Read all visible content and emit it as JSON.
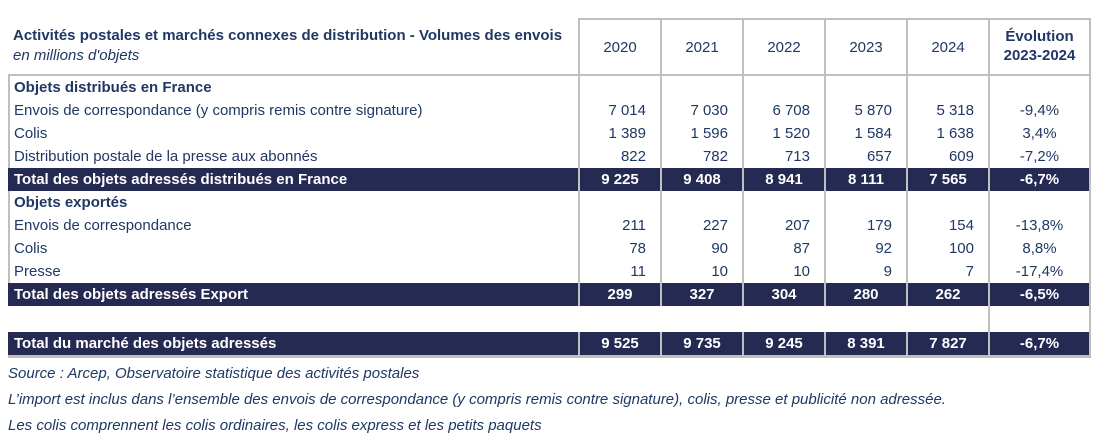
{
  "table": {
    "title": "Activités postales et marchés connexes de distribution  - Volumes des envois",
    "subtitle": "en millions d'objets",
    "year_columns": [
      "2020",
      "2021",
      "2022",
      "2023",
      "2024"
    ],
    "evolution_header_line1": "Évolution",
    "evolution_header_line2": "2023-2024",
    "rows": [
      {
        "type": "section",
        "label": "Objets distribués en France",
        "values": [
          "",
          "",
          "",
          "",
          ""
        ],
        "evolution": ""
      },
      {
        "type": "data",
        "label": "Envois de correspondance (y compris remis contre signature)",
        "values": [
          "7 014",
          "7 030",
          "6 708",
          "5 870",
          "5 318"
        ],
        "evolution": "-9,4%"
      },
      {
        "type": "data",
        "label": "Colis",
        "values": [
          "1 389",
          "1 596",
          "1 520",
          "1 584",
          "1 638"
        ],
        "evolution": "3,4%"
      },
      {
        "type": "data",
        "label": "Distribution postale de la presse aux abonnés",
        "values": [
          "822",
          "782",
          "713",
          "657",
          "609"
        ],
        "evolution": "-7,2%"
      },
      {
        "type": "total",
        "label": "Total des objets adressés distribués en France",
        "values": [
          "9 225",
          "9 408",
          "8 941",
          "8 111",
          "7 565"
        ],
        "evolution": "-6,7%"
      },
      {
        "type": "section",
        "label": "Objets exportés",
        "values": [
          "",
          "",
          "",
          "",
          ""
        ],
        "evolution": ""
      },
      {
        "type": "data",
        "label": "Envois de correspondance",
        "values": [
          "211",
          "227",
          "207",
          "179",
          "154"
        ],
        "evolution": "-13,8%"
      },
      {
        "type": "data",
        "label": "Colis",
        "values": [
          "78",
          "90",
          "87",
          "92",
          "100"
        ],
        "evolution": "8,8%"
      },
      {
        "type": "data",
        "label": "Presse",
        "values": [
          "11",
          "10",
          "10",
          "9",
          "7"
        ],
        "evolution": "-17,4%"
      },
      {
        "type": "total",
        "label": "Total des objets adressés Export",
        "values": [
          "299",
          "327",
          "304",
          "280",
          "262"
        ],
        "evolution": "-6,5%"
      },
      {
        "type": "spacer",
        "label": "",
        "values": [
          "",
          "",
          "",
          "",
          ""
        ],
        "evolution": ""
      },
      {
        "type": "grand-total",
        "label": "Total du marché des objets adressés",
        "values": [
          "9 525",
          "9 735",
          "9 245",
          "8 391",
          "7 827"
        ],
        "evolution": "-6,7%"
      }
    ]
  },
  "footnotes": [
    "Source : Arcep, Observatoire statistique des activités postales",
    "L’import est inclus dans l’ensemble des envois de correspondance (y compris remis contre signature), colis, presse et publicité non adressée.",
    "Les colis comprennent les colis ordinaires, les colis express et les petits paquets"
  ],
  "colors": {
    "text_navy": "#1F3864",
    "total_row_bg": "#252A52",
    "total_row_text": "#FFFFFF",
    "border_gray": "#BFBFBF"
  }
}
